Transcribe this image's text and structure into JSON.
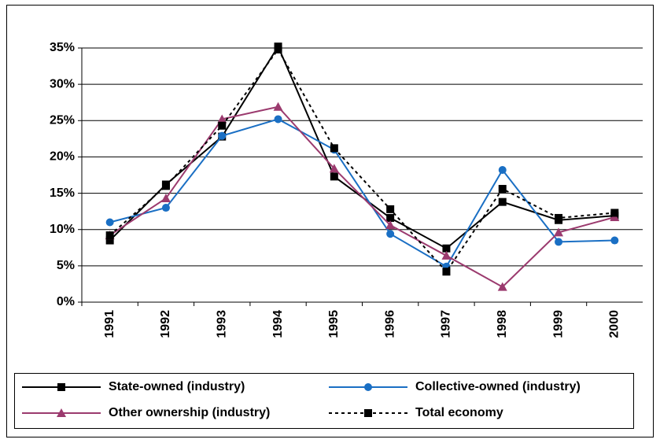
{
  "chart_data": {
    "type": "line",
    "categories": [
      "1991",
      "1992",
      "1993",
      "1994",
      "1995",
      "1996",
      "1997",
      "1998",
      "1999",
      "2000"
    ],
    "ylim": [
      0,
      35
    ],
    "yticks": [
      {
        "value": 0,
        "label": "0%"
      },
      {
        "value": 5,
        "label": "5%"
      },
      {
        "value": 10,
        "label": "10%"
      },
      {
        "value": 15,
        "label": "15%"
      },
      {
        "value": 20,
        "label": "20%"
      },
      {
        "value": 25,
        "label": "25%"
      },
      {
        "value": 30,
        "label": "30%"
      },
      {
        "value": 35,
        "label": "35%"
      }
    ],
    "grid": true,
    "legend": "bottom",
    "series": [
      {
        "name": "State-owned (industry)",
        "color": "#000000",
        "marker": "square",
        "line_style": "solid",
        "values": [
          8.5,
          16.2,
          22.8,
          35.2,
          17.3,
          11.6,
          7.4,
          13.8,
          11.3,
          11.9
        ]
      },
      {
        "name": "Collective-owned (industry)",
        "color": "#1a6fc4",
        "marker": "circle",
        "line_style": "solid",
        "values": [
          11.0,
          13.0,
          22.9,
          25.2,
          21.0,
          9.4,
          4.9,
          18.2,
          8.3,
          8.5
        ]
      },
      {
        "name": "Other ownership (industry)",
        "color": "#9b3a6e",
        "marker": "triangle",
        "line_style": "solid",
        "values": [
          9.2,
          14.3,
          25.2,
          26.9,
          18.4,
          10.6,
          6.4,
          2.1,
          9.6,
          11.7
        ]
      },
      {
        "name": "Total economy",
        "color": "#000000",
        "marker": "square",
        "line_style": "dotted",
        "values": [
          9.2,
          16.0,
          24.3,
          34.8,
          21.2,
          12.8,
          4.2,
          15.6,
          11.6,
          12.3
        ]
      }
    ]
  }
}
